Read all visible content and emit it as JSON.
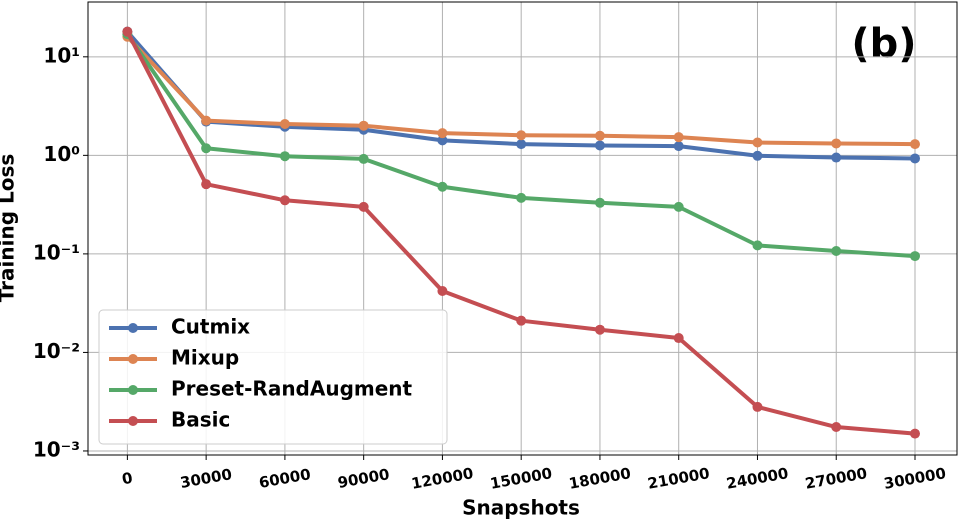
{
  "chart_data": {
    "type": "line",
    "annotation": "(b)",
    "xlabel": "Snapshots",
    "ylabel": "Training Loss",
    "x": [
      0,
      30000,
      60000,
      90000,
      120000,
      150000,
      180000,
      210000,
      240000,
      270000,
      300000
    ],
    "series": [
      {
        "name": "Cutmix",
        "color": "#4c72b0",
        "values": [
          18,
          2.2,
          1.95,
          1.82,
          1.42,
          1.3,
          1.26,
          1.24,
          0.99,
          0.95,
          0.93
        ]
      },
      {
        "name": "Mixup",
        "color": "#dd8452",
        "values": [
          16,
          2.25,
          2.08,
          2.0,
          1.68,
          1.6,
          1.58,
          1.53,
          1.35,
          1.32,
          1.3
        ]
      },
      {
        "name": "Preset-RandAugment",
        "color": "#55a868",
        "values": [
          17,
          1.18,
          0.98,
          0.92,
          0.48,
          0.37,
          0.33,
          0.3,
          0.122,
          0.107,
          0.095
        ]
      },
      {
        "name": "Basic",
        "color": "#c44e52",
        "values": [
          18,
          0.51,
          0.35,
          0.3,
          0.042,
          0.021,
          0.017,
          0.014,
          0.0028,
          0.00175,
          0.0015
        ]
      }
    ],
    "xlim": [
      -15000,
      316000
    ],
    "xticks": [
      0,
      30000,
      60000,
      90000,
      120000,
      150000,
      180000,
      210000,
      240000,
      270000,
      300000
    ],
    "ylim": [
      0.00091,
      36
    ],
    "yticks": [
      {
        "value": 0.001,
        "label": "10⁻³"
      },
      {
        "value": 0.01,
        "label": "10⁻²"
      },
      {
        "value": 0.1,
        "label": "10⁻¹"
      },
      {
        "value": 1,
        "label": "10⁰"
      },
      {
        "value": 10,
        "label": "10¹"
      }
    ],
    "yscale": "log",
    "grid": true,
    "legend": "lower left"
  }
}
